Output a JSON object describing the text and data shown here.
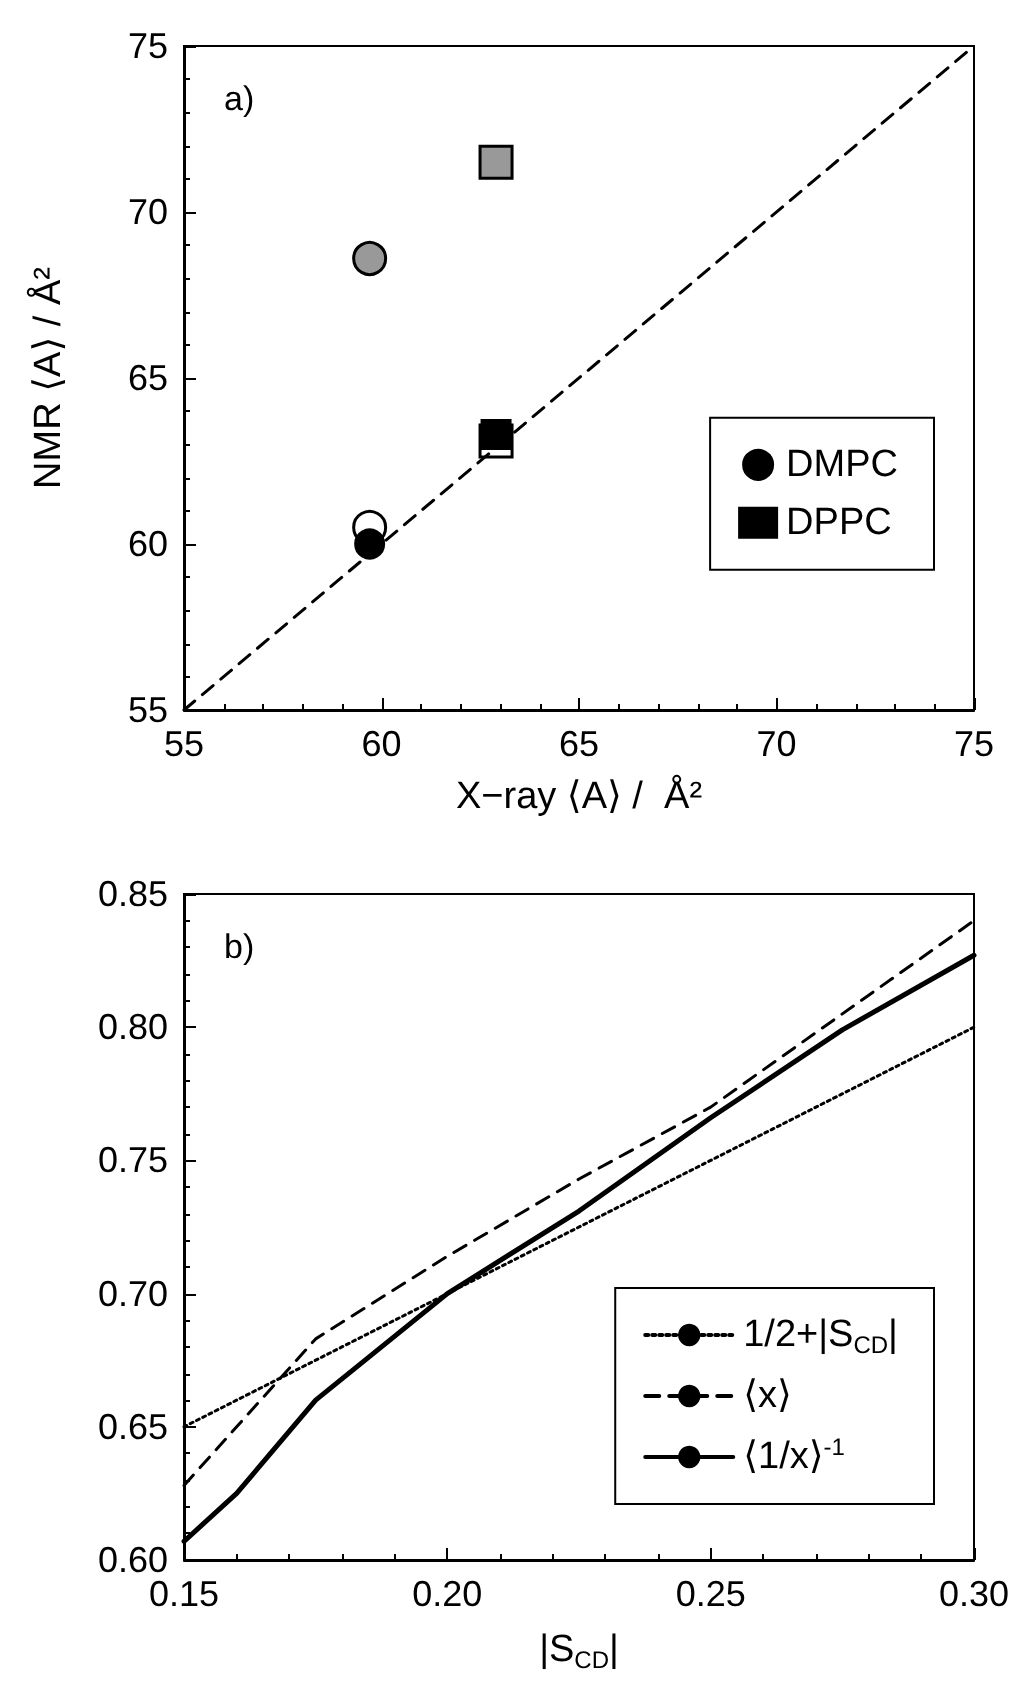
{
  "chart_data": [
    {
      "type": "scatter",
      "xlabel": "X−ray ⟨A⟩ /  Å²",
      "ylabel": "NMR ⟨A⟩ / Å²",
      "annotations": [
        "a)"
      ],
      "xlim": [
        55,
        75
      ],
      "ylim": [
        55,
        75
      ],
      "xticks": [
        55,
        60,
        65,
        70,
        75
      ],
      "yticks": [
        55,
        60,
        65,
        70,
        75
      ],
      "grid": false,
      "legend": "right",
      "series": [
        {
          "type": "line",
          "color": "#000000",
          "marker": "none",
          "line_style": "dashed",
          "x": [
            55,
            75
          ],
          "values": [
            55,
            75
          ]
        },
        {
          "color": "#999999",
          "marker": "circle",
          "x": [
            59.7
          ],
          "values": [
            68.6
          ]
        },
        {
          "color": "#999999",
          "marker": "square",
          "x": [
            62.9
          ],
          "values": [
            71.5
          ]
        },
        {
          "color": "#ffffff",
          "marker": "circle",
          "x": [
            59.7
          ],
          "values": [
            60.5
          ]
        },
        {
          "color": "#ffffff",
          "marker": "square",
          "x": [
            62.9
          ],
          "values": [
            63.1
          ]
        },
        {
          "name": "DMPC",
          "color": "#000000",
          "marker": "circle",
          "x": [
            59.7
          ],
          "values": [
            60.0
          ]
        },
        {
          "name": "DPPC",
          "color": "#000000",
          "marker": "square",
          "x": [
            62.9
          ],
          "values": [
            63.3
          ]
        }
      ]
    },
    {
      "type": "line",
      "xlabel": "|S$_{CD}$|",
      "annotations": [
        "b)"
      ],
      "xlim": [
        0.15,
        0.3
      ],
      "ylim": [
        0.6,
        0.85
      ],
      "xticks": [
        {
          "value": 0.15,
          "label": "0.15"
        },
        {
          "value": 0.2,
          "label": "0.20"
        },
        {
          "value": 0.25,
          "label": "0.25"
        },
        {
          "value": 0.3,
          "label": "0.30"
        }
      ],
      "yticks": [
        {
          "value": 0.6,
          "label": "0.60"
        },
        {
          "value": 0.65,
          "label": "0.65"
        },
        {
          "value": 0.7,
          "label": "0.70"
        },
        {
          "value": 0.75,
          "label": "0.75"
        },
        {
          "value": 0.8,
          "label": "0.80"
        },
        {
          "value": 0.85,
          "label": "0.85"
        }
      ],
      "grid": false,
      "legend": "bottom right",
      "marker": "none",
      "series": [
        {
          "name": "1/2+|S$_{CD}$|",
          "color": "#000000",
          "line_style": "dotted",
          "x": [
            0.15,
            0.2,
            0.25,
            0.3
          ],
          "values": [
            0.65,
            0.7,
            0.75,
            0.8
          ]
        },
        {
          "name": "⟨x⟩",
          "color": "#000000",
          "line_style": "dashed",
          "x": [
            0.15,
            0.16,
            0.175,
            0.2,
            0.225,
            0.25,
            0.275,
            0.3
          ],
          "values": [
            0.628,
            0.65,
            0.683,
            0.714,
            0.743,
            0.77,
            0.805,
            0.84
          ]
        },
        {
          "name": "⟨1/x⟩$^{-1}$",
          "color": "#000000",
          "line_style": "solid",
          "x": [
            0.15,
            0.16,
            0.175,
            0.2,
            0.225,
            0.25,
            0.275,
            0.3
          ],
          "values": [
            0.607,
            0.625,
            0.66,
            0.7,
            0.731,
            0.766,
            0.799,
            0.827
          ]
        }
      ]
    }
  ]
}
